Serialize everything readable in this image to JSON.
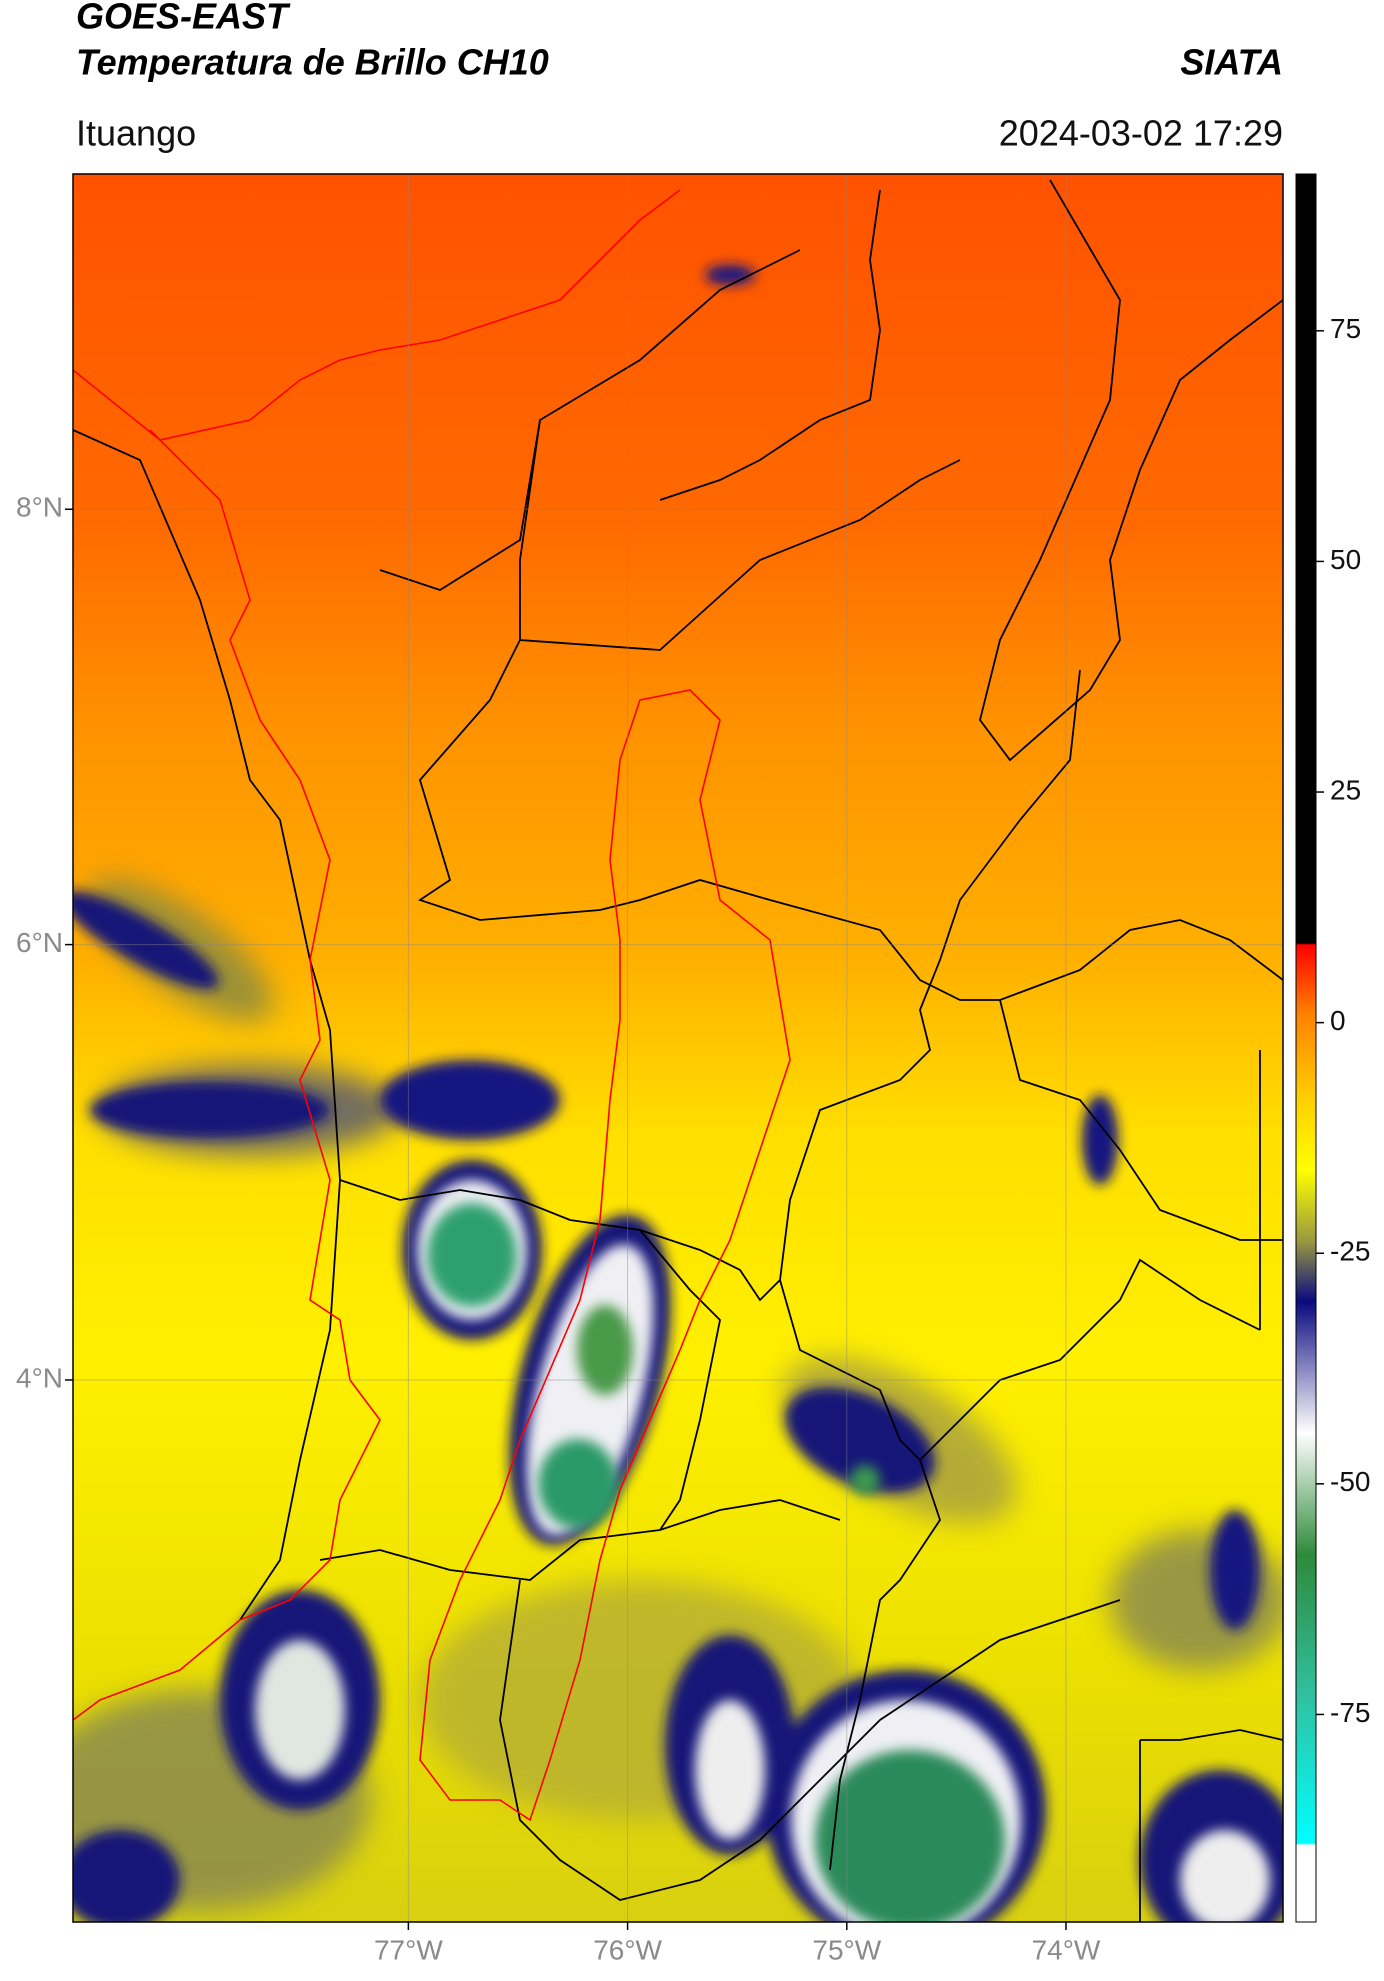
{
  "header": {
    "satellite": "GOES-EAST",
    "product": "Temperatura de Brillo CH10",
    "agency": "SIATA",
    "region": "Ituango",
    "datetime": "2024-03-02 17:29"
  },
  "map": {
    "xlim": [
      -78.53,
      -73.01
    ],
    "ylim": [
      1.51,
      9.54
    ],
    "grid": true,
    "lat_ticks": [
      {
        "value": 8,
        "label": "8°N"
      },
      {
        "value": 6,
        "label": "6°N"
      },
      {
        "value": 4,
        "label": "4°N"
      }
    ],
    "lon_ticks": [
      {
        "value": -77,
        "label": "77°W"
      },
      {
        "value": -76,
        "label": "76°W"
      },
      {
        "value": -75,
        "label": "75°W"
      },
      {
        "value": -74,
        "label": "74°W"
      }
    ]
  },
  "colorbar": {
    "lim": [
      -97.5,
      92
    ],
    "ticks": [
      75,
      50,
      25,
      0,
      -25,
      -50,
      -75
    ]
  }
}
